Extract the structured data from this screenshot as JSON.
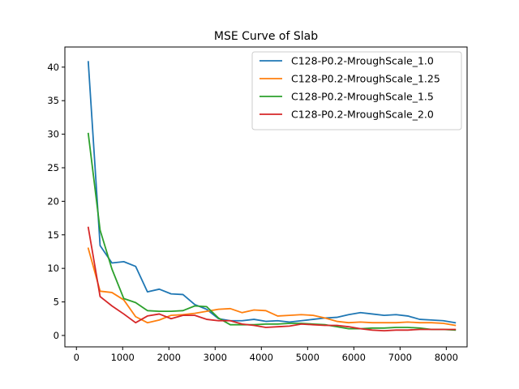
{
  "chart_data": {
    "type": "line",
    "title": "MSE Curve of Slab",
    "xlabel": "",
    "ylabel": "",
    "xlim": [
      -250,
      8450
    ],
    "ylim": [
      -1.7,
      43.0
    ],
    "xticks": [
      0,
      1000,
      2000,
      3000,
      4000,
      5000,
      6000,
      7000,
      8000
    ],
    "yticks": [
      0,
      5,
      10,
      15,
      20,
      25,
      30,
      35,
      40
    ],
    "grid": false,
    "legend_position": "upper right",
    "x": [
      256,
      512,
      768,
      1024,
      1280,
      1536,
      1792,
      2048,
      2304,
      2560,
      2816,
      3072,
      3328,
      3584,
      3840,
      4096,
      4352,
      4608,
      4864,
      5120,
      5376,
      5632,
      5888,
      6144,
      6400,
      6656,
      6912,
      7168,
      7424,
      7680,
      7936,
      8192
    ],
    "series": [
      {
        "name": "C128-P0.2-MroughScale_1.0",
        "color": "#1f77b4",
        "values": [
          40.8,
          13.4,
          10.8,
          11.0,
          10.3,
          6.5,
          6.9,
          6.2,
          6.1,
          4.6,
          3.9,
          2.5,
          2.2,
          2.2,
          2.4,
          2.1,
          2.2,
          2.0,
          2.2,
          2.4,
          2.6,
          2.7,
          3.1,
          3.4,
          3.2,
          3.0,
          3.1,
          2.9,
          2.4,
          2.3,
          2.2,
          1.9
        ]
      },
      {
        "name": "C128-P0.2-MroughScale_1.25",
        "color": "#ff7f0e",
        "values": [
          13.0,
          6.6,
          6.4,
          5.3,
          2.8,
          1.9,
          2.3,
          3.0,
          3.1,
          3.3,
          3.6,
          3.9,
          4.0,
          3.4,
          3.8,
          3.7,
          2.9,
          3.0,
          3.1,
          3.0,
          2.6,
          2.1,
          1.9,
          2.0,
          1.9,
          1.9,
          1.9,
          2.0,
          1.9,
          1.9,
          1.8,
          1.5
        ]
      },
      {
        "name": "C128-P0.2-MroughScale_1.5",
        "color": "#2ca02c",
        "values": [
          30.1,
          15.7,
          9.9,
          5.5,
          4.9,
          3.7,
          3.6,
          3.6,
          3.7,
          4.4,
          4.3,
          2.6,
          1.6,
          1.6,
          1.6,
          1.7,
          1.7,
          1.8,
          1.8,
          1.7,
          1.6,
          1.3,
          1.0,
          1.0,
          1.1,
          1.1,
          1.2,
          1.2,
          1.1,
          0.9,
          0.9,
          0.8
        ]
      },
      {
        "name": "C128-P0.2-MroughScale_2.0",
        "color": "#d62728",
        "values": [
          16.1,
          5.8,
          4.4,
          3.2,
          1.9,
          2.9,
          3.2,
          2.5,
          3.0,
          3.0,
          2.4,
          2.2,
          2.2,
          1.7,
          1.5,
          1.2,
          1.3,
          1.4,
          1.7,
          1.6,
          1.5,
          1.5,
          1.3,
          1.0,
          0.8,
          0.7,
          0.8,
          0.8,
          0.9,
          0.9,
          0.9,
          0.9
        ]
      }
    ]
  }
}
